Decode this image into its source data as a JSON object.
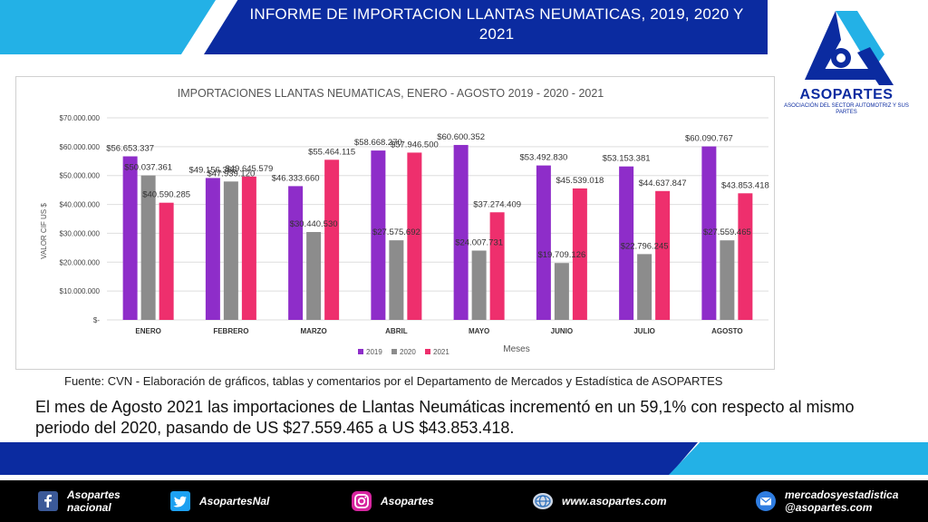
{
  "header": {
    "title": "INFORME DE IMPORTACION LLANTAS NEUMATICAS, 2019, 2020 Y 2021"
  },
  "logo": {
    "name": "ASOPARTES",
    "subtitle": "ASOCIACIÓN DEL SECTOR AUTOMOTRIZ Y SUS PARTES"
  },
  "colors": {
    "series_2019": "#8e2dc9",
    "series_2020": "#8c8c8c",
    "series_2021": "#ee2f6d",
    "brand_blue": "#0b2ba0",
    "brand_cyan": "#23b1e6"
  },
  "chart_data": {
    "type": "bar",
    "title": "IMPORTACIONES LLANTAS NEUMATICAS, ENERO - AGOSTO 2019 - 2020 - 2021",
    "xlabel": "Meses",
    "ylabel": "VALOR CIF US $",
    "ylim": [
      0,
      70000000
    ],
    "yticks": [
      "$-",
      "$10.000.000",
      "$20.000.000",
      "$30.000.000",
      "$40.000.000",
      "$50.000.000",
      "$60.000.000",
      "$70.000.000"
    ],
    "grid": true,
    "legend_position": "bottom",
    "categories": [
      "ENERO",
      "FEBRERO",
      "MARZO",
      "ABRIL",
      "MAYO",
      "JUNIO",
      "JULIO",
      "AGOSTO"
    ],
    "series": [
      {
        "name": "2019",
        "values": [
          56653337,
          49156366,
          46333660,
          58668270,
          60600352,
          53492830,
          53153381,
          60090767
        ],
        "labels": [
          "$56.653.337",
          "$49.156.366",
          "$46.333.660",
          "$58.668.270",
          "$60.600.352",
          "$53.492.830",
          "$53.153.381",
          "$60.090.767"
        ]
      },
      {
        "name": "2020",
        "values": [
          50037361,
          47939120,
          30440530,
          27575692,
          24007731,
          19709126,
          22796245,
          27559465
        ],
        "labels": [
          "$50.037.361",
          "$47.939.120",
          "$30.440.530",
          "$27.575.692",
          "$24.007.731",
          "$19.709.126",
          "$22.796.245",
          "$27.559.465"
        ]
      },
      {
        "name": "2021",
        "values": [
          40590285,
          49645579,
          55464115,
          57946500,
          37274409,
          45539018,
          44637847,
          43853418
        ],
        "labels": [
          "$40.590.285",
          "$49.645.579",
          "$55.464.115",
          "$57.946.500",
          "$37.274.409",
          "$45.539.018",
          "$44.637.847",
          "$43.853.418"
        ]
      }
    ]
  },
  "source": "Fuente: CVN - Elaboración de gráficos, tablas y comentarios  por el Departamento de Mercados y Estadística de ASOPARTES",
  "commentary": "El mes de Agosto 2021 las importaciones de Llantas Neumáticas incrementó en un 59,1% con respecto al mismo periodo del 2020, pasando de US $27.559.465 a US $43.853.418.",
  "footer": {
    "facebook": "Asopartes nacional",
    "twitter": "AsopartesNal",
    "instagram": "Asopartes",
    "website": "www.asopartes.com",
    "email_line1": "mercadosyestadistica",
    "email_line2": "@asopartes.com"
  }
}
